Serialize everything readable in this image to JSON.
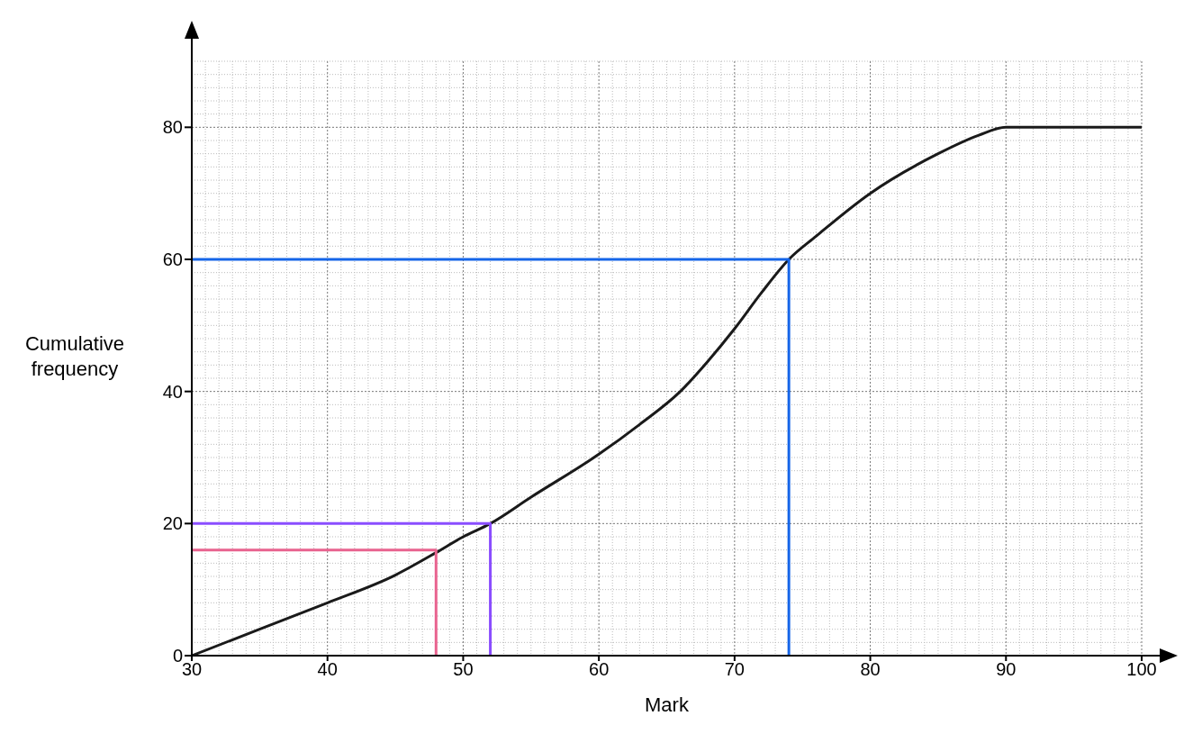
{
  "chart_data": {
    "type": "line",
    "xlabel": "Mark",
    "ylabel": "Cumulative frequency",
    "xlim": [
      30,
      100
    ],
    "ylim": [
      0,
      90
    ],
    "xticks": [
      30,
      40,
      50,
      60,
      70,
      80,
      90,
      100
    ],
    "yticks": [
      0,
      20,
      40,
      60,
      80
    ],
    "grid": true,
    "marker": "none",
    "line_style": "solid",
    "series": [
      {
        "color": "#1a1a1a",
        "x": [
          30,
          35,
          40,
          45,
          48,
          50,
          52,
          55,
          60,
          63,
          66,
          68,
          70,
          72,
          74,
          76,
          80,
          85,
          88,
          90,
          100
        ],
        "values": [
          0,
          4,
          8,
          12.2,
          15.6,
          18,
          20,
          24,
          30.5,
          35,
          40,
          44.5,
          49.5,
          55,
          60,
          63.5,
          70,
          76,
          78.8,
          80,
          80
        ]
      },
      {
        "type": "line",
        "color": "#1565e8",
        "x": [
          30,
          74,
          74
        ],
        "values": [
          60,
          60,
          0
        ]
      },
      {
        "type": "line",
        "color": "#8a4dff",
        "x": [
          30,
          52,
          52
        ],
        "values": [
          20,
          20,
          0
        ]
      },
      {
        "type": "line",
        "color": "#e8638f",
        "x": [
          30,
          48,
          48
        ],
        "values": [
          16,
          16,
          0
        ]
      }
    ]
  }
}
